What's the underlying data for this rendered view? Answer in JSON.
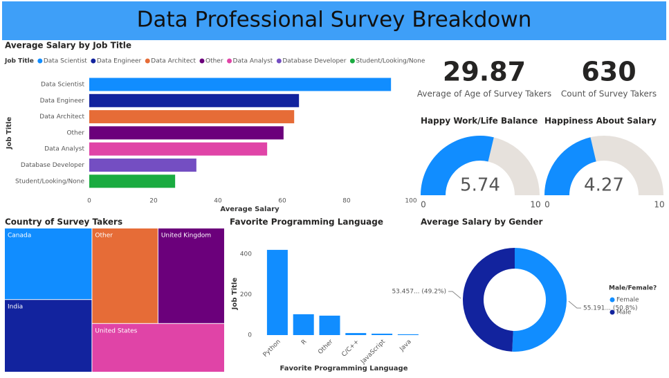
{
  "title": "Data Professional Survey Breakdown",
  "chart_data": [
    {
      "type": "bar",
      "orientation": "horizontal",
      "title": "Average Salary by Job Title",
      "legend_title": "Job Title",
      "categories": [
        "Data Scientist",
        "Data Engineer",
        "Data Architect",
        "Other",
        "Data Analyst",
        "Database Developer",
        "Student/Looking/None"
      ],
      "values": [
        93.8,
        65.2,
        63.7,
        60.4,
        55.3,
        33.3,
        26.7
      ],
      "colors": [
        "#118dff",
        "#12239e",
        "#e66c37",
        "#6b007b",
        "#e044a7",
        "#744ec2",
        "#1aab40"
      ],
      "xlim": [
        0,
        100
      ],
      "xticks": [
        0,
        20,
        40,
        60,
        80,
        100
      ],
      "xlabel": "Average Salary",
      "ylabel": "Job Title"
    },
    {
      "type": "card",
      "value": 29.87,
      "label": "Average of Age of Survey Takers"
    },
    {
      "type": "card",
      "value": 630,
      "label": "Count of Survey Takers"
    },
    {
      "type": "gauge",
      "title": "Happy Work/Life Balance",
      "value": 5.74,
      "min": 0,
      "max": 10,
      "color": "#118dff",
      "track_color": "#e6e1dc"
    },
    {
      "type": "gauge",
      "title": "Happiness About Salary",
      "value": 4.27,
      "min": 0,
      "max": 10,
      "color": "#118dff",
      "track_color": "#e6e1dc"
    },
    {
      "type": "treemap",
      "title": "Country of Survey Takers",
      "categories": [
        "Canada",
        "India",
        "Other",
        "United Kingdom",
        "United States"
      ],
      "values": [
        13.0,
        13.2,
        13.1,
        13.2,
        13.4
      ],
      "colors": [
        "#118dff",
        "#12239e",
        "#e66c37",
        "#6b007b",
        "#e044a7"
      ]
    },
    {
      "type": "column",
      "title": "Favorite Programming Language",
      "categories": [
        "Python",
        "R",
        "Other",
        "C/C++",
        "JavaScript",
        "Java"
      ],
      "values": [
        421,
        103,
        96,
        10,
        7,
        4
      ],
      "color": "#118dff",
      "ylim": [
        0,
        460
      ],
      "yticks": [
        0,
        200,
        400
      ],
      "xlabel": "Favorite Programming Language",
      "ylabel": "Job Title"
    },
    {
      "type": "donut",
      "title": "Average Salary by Gender",
      "legend_title": "Male/Female?",
      "categories": [
        "Female",
        "Male"
      ],
      "values": [
        55.191,
        53.457
      ],
      "value_labels": [
        "55.191... (50.8%)",
        "53.457... (49.2%)"
      ],
      "colors": [
        "#118dff",
        "#12239e"
      ]
    }
  ]
}
